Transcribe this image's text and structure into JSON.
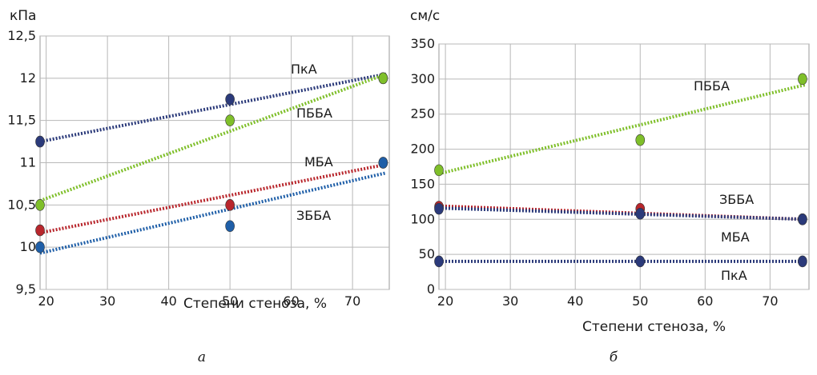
{
  "chart_data": [
    {
      "type": "scatter",
      "panel_label": "а",
      "unit_label": "кПа",
      "xlabel": "Степени стеноза, %",
      "xlim": [
        19,
        76
      ],
      "ylim": [
        9.5,
        12.5
      ],
      "x_ticks": [
        20,
        30,
        40,
        50,
        60,
        70
      ],
      "y_ticks": [
        "9,5",
        "10",
        "10,5",
        "11",
        "11,5",
        "12",
        "12,5"
      ],
      "y_tick_values": [
        9.5,
        10,
        10.5,
        11,
        11.5,
        12,
        12.5
      ],
      "grid": true,
      "trendlines": "dotted linear",
      "series": [
        {
          "name": "ПкА",
          "color": "#2b3a7a",
          "x": [
            19,
            50,
            75
          ],
          "y": [
            11.25,
            11.75,
            12.0
          ],
          "trend": [
            11.25,
            12.05
          ]
        },
        {
          "name": "ПББА",
          "color": "#7fbf2a",
          "x": [
            19,
            50,
            75
          ],
          "y": [
            10.5,
            11.5,
            12.0
          ],
          "trend": [
            10.55,
            12.05
          ]
        },
        {
          "name": "МБА",
          "color": "#b8262c",
          "x": [
            19,
            50,
            75
          ],
          "y": [
            10.2,
            10.5,
            11.0
          ],
          "trend": [
            10.17,
            10.98
          ]
        },
        {
          "name": "ЗББА",
          "color": "#1f5fa8",
          "x": [
            19,
            50,
            75
          ],
          "y": [
            10.0,
            10.25,
            11.0
          ],
          "trend": [
            9.93,
            10.88
          ]
        }
      ]
    },
    {
      "type": "scatter",
      "panel_label": "б",
      "unit_label": "см/с",
      "xlabel": "Степени стеноза, %",
      "xlim": [
        19,
        76
      ],
      "ylim": [
        0,
        350
      ],
      "x_ticks": [
        20,
        30,
        40,
        50,
        60,
        70
      ],
      "y_ticks": [
        "0",
        "50",
        "100",
        "150",
        "200",
        "250",
        "300",
        "350"
      ],
      "y_tick_values": [
        0,
        50,
        100,
        150,
        200,
        250,
        300,
        350
      ],
      "grid": true,
      "trendlines": "dotted linear",
      "series": [
        {
          "name": "ПББА",
          "color": "#7fbf2a",
          "x": [
            19,
            50,
            75
          ],
          "y": [
            170,
            213,
            300
          ],
          "trend": [
            165,
            292
          ]
        },
        {
          "name": "ЗББА",
          "color": "#b8262c",
          "x": [
            19,
            50,
            75
          ],
          "y": [
            118,
            115,
            100
          ],
          "trend": [
            119,
            100
          ]
        },
        {
          "name": "МБА",
          "color": "#2b3a7a",
          "x": [
            19,
            50,
            75
          ],
          "y": [
            115,
            108,
            100
          ],
          "trend": [
            116,
            100
          ]
        },
        {
          "name": "ПкА",
          "color": "#2b3a7a",
          "x": [
            19,
            50,
            75
          ],
          "y": [
            40,
            40,
            40
          ],
          "trend": [
            40,
            40
          ]
        }
      ]
    }
  ]
}
